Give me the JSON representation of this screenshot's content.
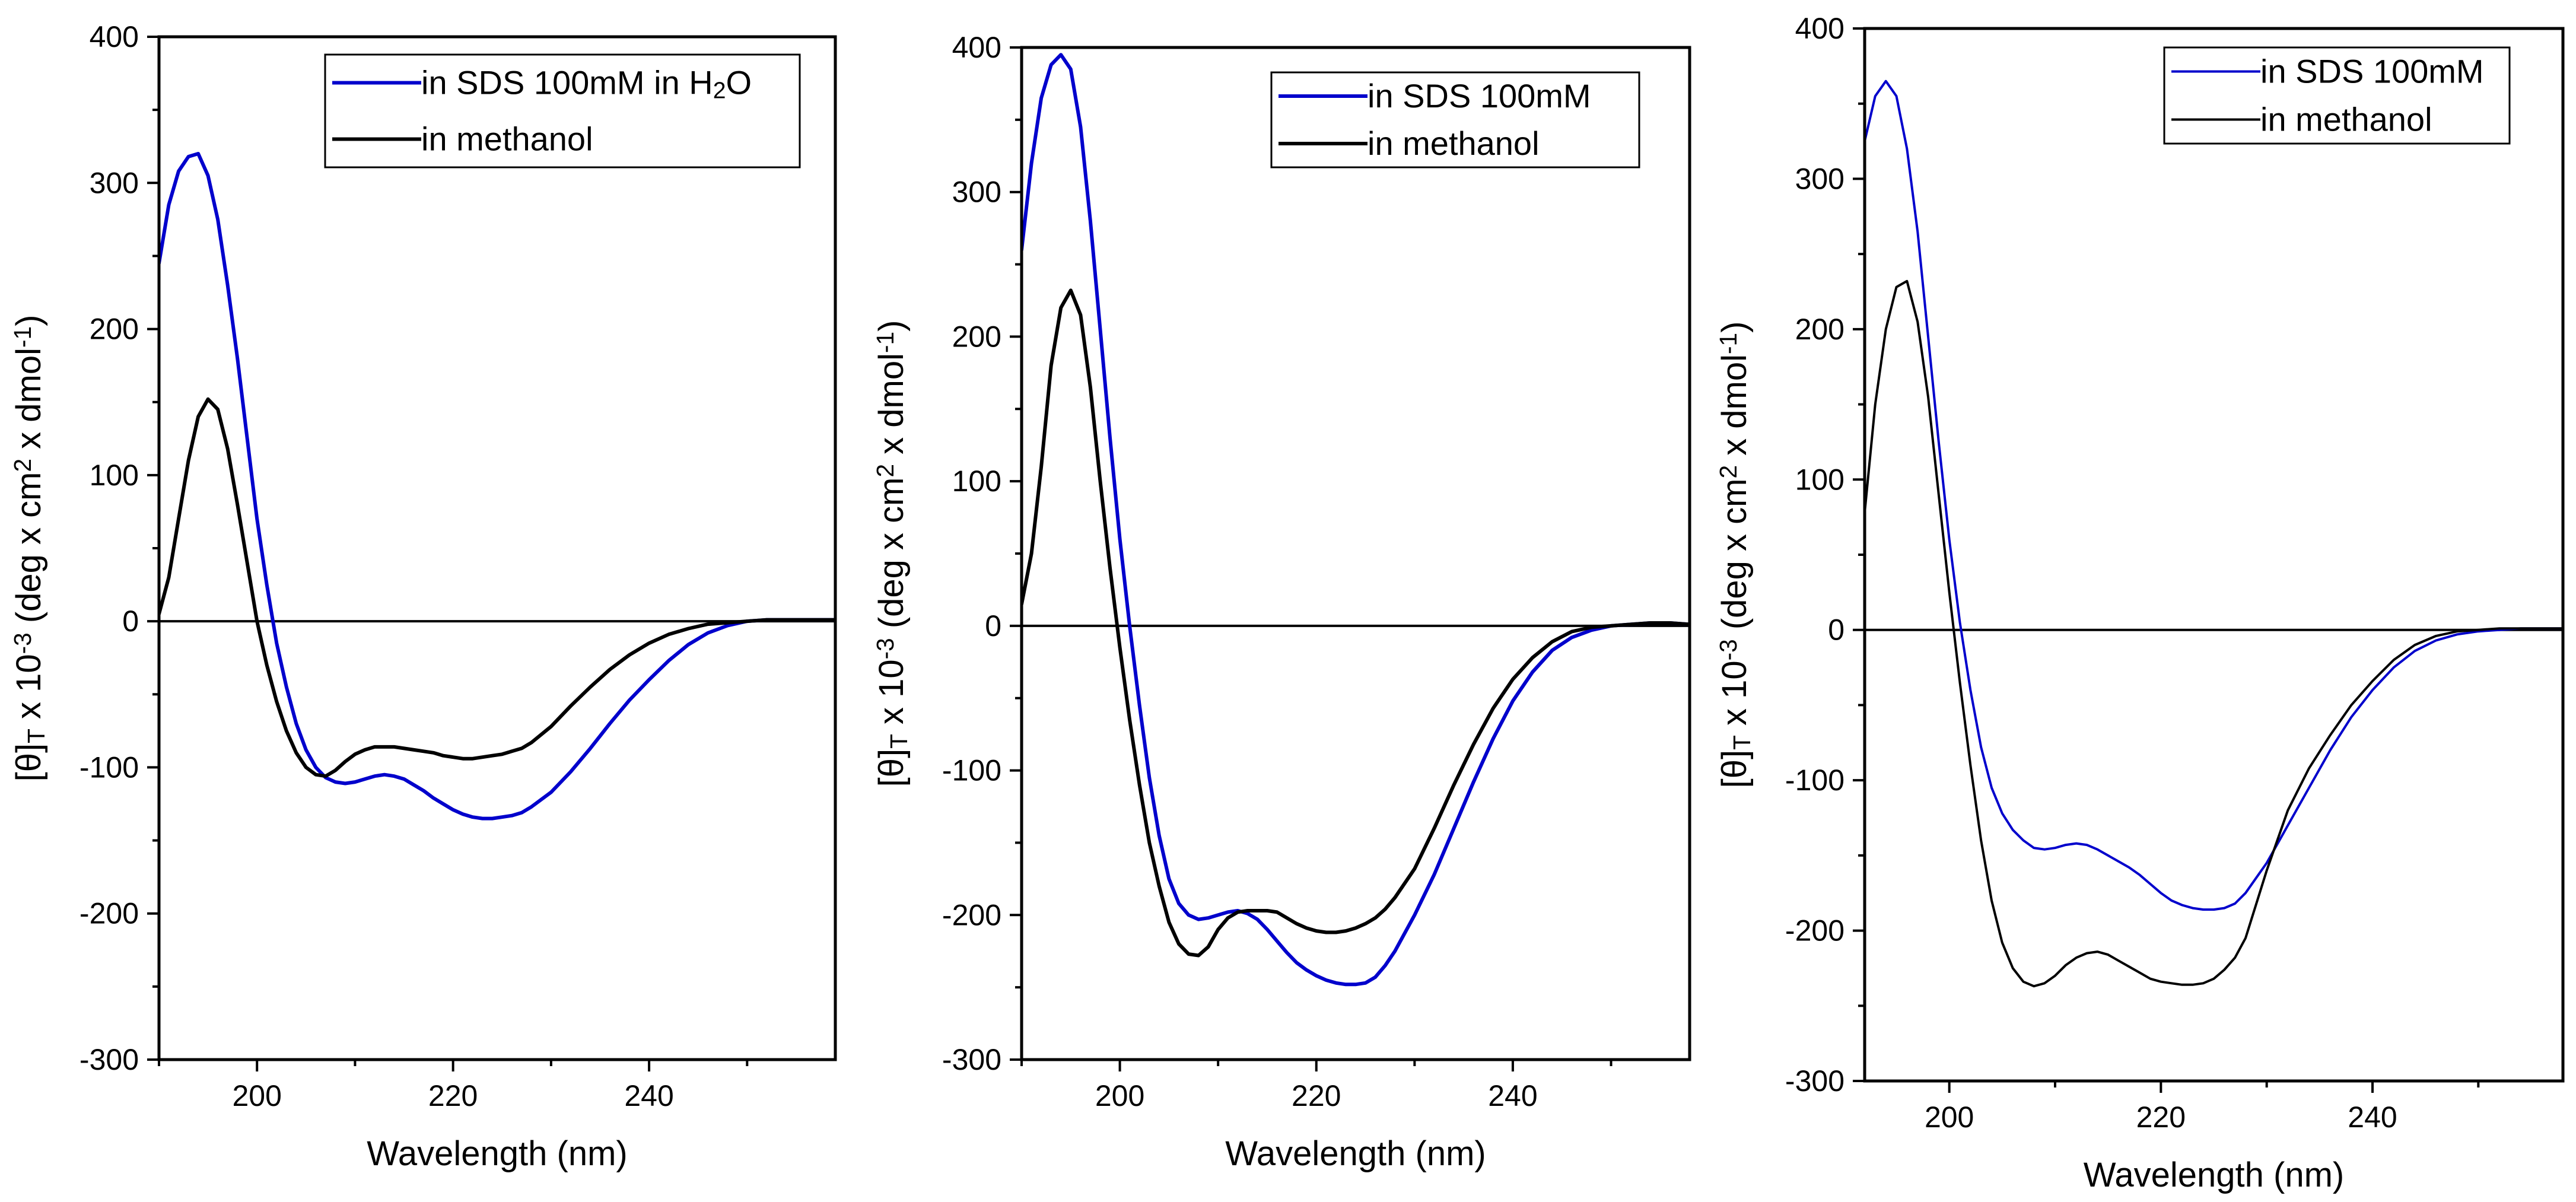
{
  "chart_data": [
    {
      "type": "line",
      "xlabel": "Wavelength (nm)",
      "ylabel": "[θ]T x 10-3 (deg x cm2 x dmol-1)",
      "xlim": [
        190,
        259
      ],
      "ylim": [
        -300,
        400
      ],
      "x_ticks": [
        200,
        220,
        240
      ],
      "y_ticks": [
        -300,
        -200,
        -100,
        0,
        100,
        200,
        300,
        400
      ],
      "zero_line": true,
      "legend": {
        "placement": "top-right",
        "entries": [
          "in SDS 100mM in H2O",
          "in methanol"
        ]
      },
      "series": [
        {
          "name": "in SDS 100mM in H2O",
          "color": "#0000cc",
          "x": [
            190,
            191,
            192,
            193,
            194,
            195,
            196,
            197,
            198,
            199,
            200,
            201,
            202,
            203,
            204,
            205,
            206,
            207,
            208,
            209,
            210,
            211,
            212,
            213,
            214,
            215,
            216,
            217,
            218,
            219,
            220,
            221,
            222,
            223,
            224,
            225,
            226,
            227,
            228,
            230,
            232,
            234,
            236,
            238,
            240,
            242,
            244,
            246,
            248,
            250,
            252,
            254,
            256,
            259
          ],
          "y": [
            245,
            285,
            308,
            318,
            320,
            305,
            275,
            230,
            180,
            125,
            70,
            25,
            -15,
            -45,
            -70,
            -88,
            -100,
            -107,
            -110,
            -111,
            -110,
            -108,
            -106,
            -105,
            -106,
            -108,
            -112,
            -116,
            -121,
            -125,
            -129,
            -132,
            -134,
            -135,
            -135,
            -134,
            -133,
            -131,
            -127,
            -117,
            -103,
            -87,
            -70,
            -54,
            -40,
            -27,
            -16,
            -8,
            -3,
            0,
            1,
            1,
            1,
            1
          ]
        },
        {
          "name": "in methanol",
          "color": "#000000",
          "x": [
            190,
            191,
            192,
            193,
            194,
            195,
            196,
            197,
            198,
            199,
            200,
            201,
            202,
            203,
            204,
            205,
            206,
            207,
            208,
            209,
            210,
            211,
            212,
            213,
            214,
            215,
            216,
            217,
            218,
            219,
            220,
            221,
            222,
            223,
            224,
            225,
            226,
            227,
            228,
            230,
            232,
            234,
            236,
            238,
            240,
            242,
            244,
            246,
            248,
            250,
            252,
            254,
            256,
            259
          ],
          "y": [
            5,
            30,
            70,
            110,
            140,
            152,
            145,
            118,
            80,
            40,
            0,
            -30,
            -55,
            -75,
            -90,
            -100,
            -105,
            -106,
            -102,
            -96,
            -91,
            -88,
            -86,
            -86,
            -86,
            -87,
            -88,
            -89,
            -90,
            -92,
            -93,
            -94,
            -94,
            -93,
            -92,
            -91,
            -89,
            -87,
            -83,
            -72,
            -58,
            -45,
            -33,
            -23,
            -15,
            -9,
            -5,
            -2,
            -1,
            0,
            1,
            1,
            1,
            1
          ]
        }
      ]
    },
    {
      "type": "line",
      "xlabel": "Wavelength (nm)",
      "ylabel": "[θ]T x 10-3 (deg x cm2 x dmol-1)",
      "xlim": [
        190,
        258
      ],
      "ylim": [
        -300,
        400
      ],
      "x_ticks": [
        200,
        220,
        240
      ],
      "y_ticks": [
        -300,
        -200,
        -100,
        0,
        100,
        200,
        300,
        400
      ],
      "zero_line": true,
      "legend": {
        "placement": "top-right",
        "entries": [
          "in SDS 100mM",
          "in methanol"
        ]
      },
      "series": [
        {
          "name": "in SDS 100mM",
          "color": "#0000cc",
          "x": [
            190,
            191,
            192,
            193,
            194,
            195,
            196,
            197,
            198,
            199,
            200,
            201,
            202,
            203,
            204,
            205,
            206,
            207,
            208,
            209,
            210,
            211,
            212,
            213,
            214,
            215,
            216,
            217,
            218,
            219,
            220,
            221,
            222,
            223,
            224,
            225,
            226,
            227,
            228,
            230,
            232,
            234,
            236,
            238,
            240,
            242,
            244,
            246,
            248,
            250,
            252,
            254,
            256,
            258
          ],
          "y": [
            260,
            320,
            365,
            388,
            395,
            385,
            345,
            280,
            205,
            130,
            60,
            0,
            -55,
            -105,
            -145,
            -175,
            -192,
            -200,
            -203,
            -202,
            -200,
            -198,
            -197,
            -199,
            -203,
            -210,
            -218,
            -226,
            -233,
            -238,
            -242,
            -245,
            -247,
            -248,
            -248,
            -247,
            -243,
            -235,
            -225,
            -200,
            -172,
            -140,
            -108,
            -78,
            -52,
            -32,
            -17,
            -8,
            -3,
            0,
            1,
            2,
            2,
            1
          ]
        },
        {
          "name": "in methanol",
          "color": "#000000",
          "x": [
            190,
            191,
            192,
            193,
            194,
            195,
            196,
            197,
            198,
            199,
            200,
            201,
            202,
            203,
            204,
            205,
            206,
            207,
            208,
            209,
            210,
            211,
            212,
            213,
            214,
            215,
            216,
            217,
            218,
            219,
            220,
            221,
            222,
            223,
            224,
            225,
            226,
            227,
            228,
            230,
            232,
            234,
            236,
            238,
            240,
            242,
            244,
            246,
            248,
            250,
            252,
            254,
            256,
            258
          ],
          "y": [
            15,
            50,
            110,
            180,
            220,
            232,
            215,
            165,
            100,
            40,
            -15,
            -65,
            -110,
            -150,
            -180,
            -205,
            -220,
            -227,
            -228,
            -222,
            -210,
            -202,
            -198,
            -197,
            -197,
            -197,
            -198,
            -202,
            -206,
            -209,
            -211,
            -212,
            -212,
            -211,
            -209,
            -206,
            -202,
            -196,
            -188,
            -168,
            -140,
            -110,
            -82,
            -57,
            -37,
            -22,
            -11,
            -4,
            -1,
            0,
            1,
            2,
            2,
            1
          ]
        }
      ]
    },
    {
      "type": "line",
      "xlabel": "Wavelength (nm)",
      "ylabel": "[θ]T x 10-3 (deg x cm2 x dmol-1)",
      "xlim": [
        192,
        258
      ],
      "ylim": [
        -300,
        400
      ],
      "x_ticks": [
        200,
        220,
        240
      ],
      "y_ticks": [
        -300,
        -200,
        -100,
        0,
        100,
        200,
        300,
        400
      ],
      "zero_line": true,
      "legend": {
        "placement": "top-right",
        "entries": [
          "in SDS 100mM",
          "in methanol"
        ]
      },
      "series": [
        {
          "name": "in SDS 100mM",
          "color": "#0000cc",
          "x": [
            192,
            193,
            194,
            195,
            196,
            197,
            198,
            199,
            200,
            201,
            202,
            203,
            204,
            205,
            206,
            207,
            208,
            209,
            210,
            211,
            212,
            213,
            214,
            215,
            216,
            217,
            218,
            219,
            220,
            221,
            222,
            223,
            224,
            225,
            226,
            227,
            228,
            230,
            232,
            234,
            236,
            238,
            240,
            242,
            244,
            246,
            248,
            250,
            252,
            254,
            256,
            258
          ],
          "y": [
            325,
            355,
            365,
            355,
            320,
            265,
            195,
            125,
            60,
            5,
            -40,
            -78,
            -105,
            -122,
            -133,
            -140,
            -145,
            -146,
            -145,
            -143,
            -142,
            -143,
            -146,
            -150,
            -154,
            -158,
            -163,
            -169,
            -175,
            -180,
            -183,
            -185,
            -186,
            -186,
            -185,
            -182,
            -175,
            -155,
            -130,
            -105,
            -80,
            -58,
            -40,
            -25,
            -14,
            -7,
            -3,
            -1,
            0,
            1,
            1,
            1
          ]
        },
        {
          "name": "in methanol",
          "color": "#000000",
          "x": [
            192,
            193,
            194,
            195,
            196,
            197,
            198,
            199,
            200,
            201,
            202,
            203,
            204,
            205,
            206,
            207,
            208,
            209,
            210,
            211,
            212,
            213,
            214,
            215,
            216,
            217,
            218,
            219,
            220,
            221,
            222,
            223,
            224,
            225,
            226,
            227,
            228,
            230,
            232,
            234,
            236,
            238,
            240,
            242,
            244,
            246,
            248,
            250,
            252,
            254,
            256,
            258
          ],
          "y": [
            78,
            150,
            200,
            228,
            232,
            205,
            155,
            90,
            25,
            -35,
            -90,
            -140,
            -180,
            -208,
            -225,
            -234,
            -237,
            -235,
            -230,
            -223,
            -218,
            -215,
            -214,
            -216,
            -220,
            -224,
            -228,
            -232,
            -234,
            -235,
            -236,
            -236,
            -235,
            -232,
            -226,
            -218,
            -205,
            -160,
            -120,
            -92,
            -70,
            -50,
            -34,
            -20,
            -10,
            -4,
            -1,
            0,
            1,
            1,
            1,
            1
          ]
        }
      ]
    }
  ]
}
